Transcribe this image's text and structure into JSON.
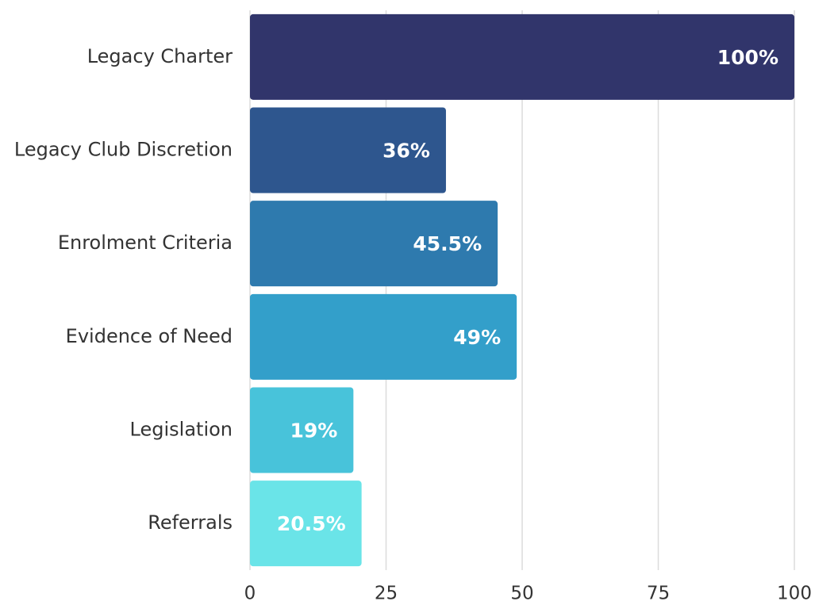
{
  "chart_data": {
    "type": "barh",
    "categories": [
      "Legacy Charter",
      "Legacy Club Discretion",
      "Enrolment Criteria",
      "Evidence of Need",
      "Legislation",
      "Referrals"
    ],
    "values": [
      100,
      36,
      45.5,
      49,
      19,
      20.5
    ],
    "value_labels": [
      "100%",
      "36%",
      "45.5%",
      "49%",
      "19%",
      "20.5%"
    ],
    "colors": [
      "#31356b",
      "#2e568e",
      "#2e7aae",
      "#339fca",
      "#48c3da",
      "#6ae4e8"
    ],
    "xlim": [
      0,
      100
    ],
    "xticks": [
      0,
      25,
      50,
      75,
      100
    ],
    "grid": true
  }
}
